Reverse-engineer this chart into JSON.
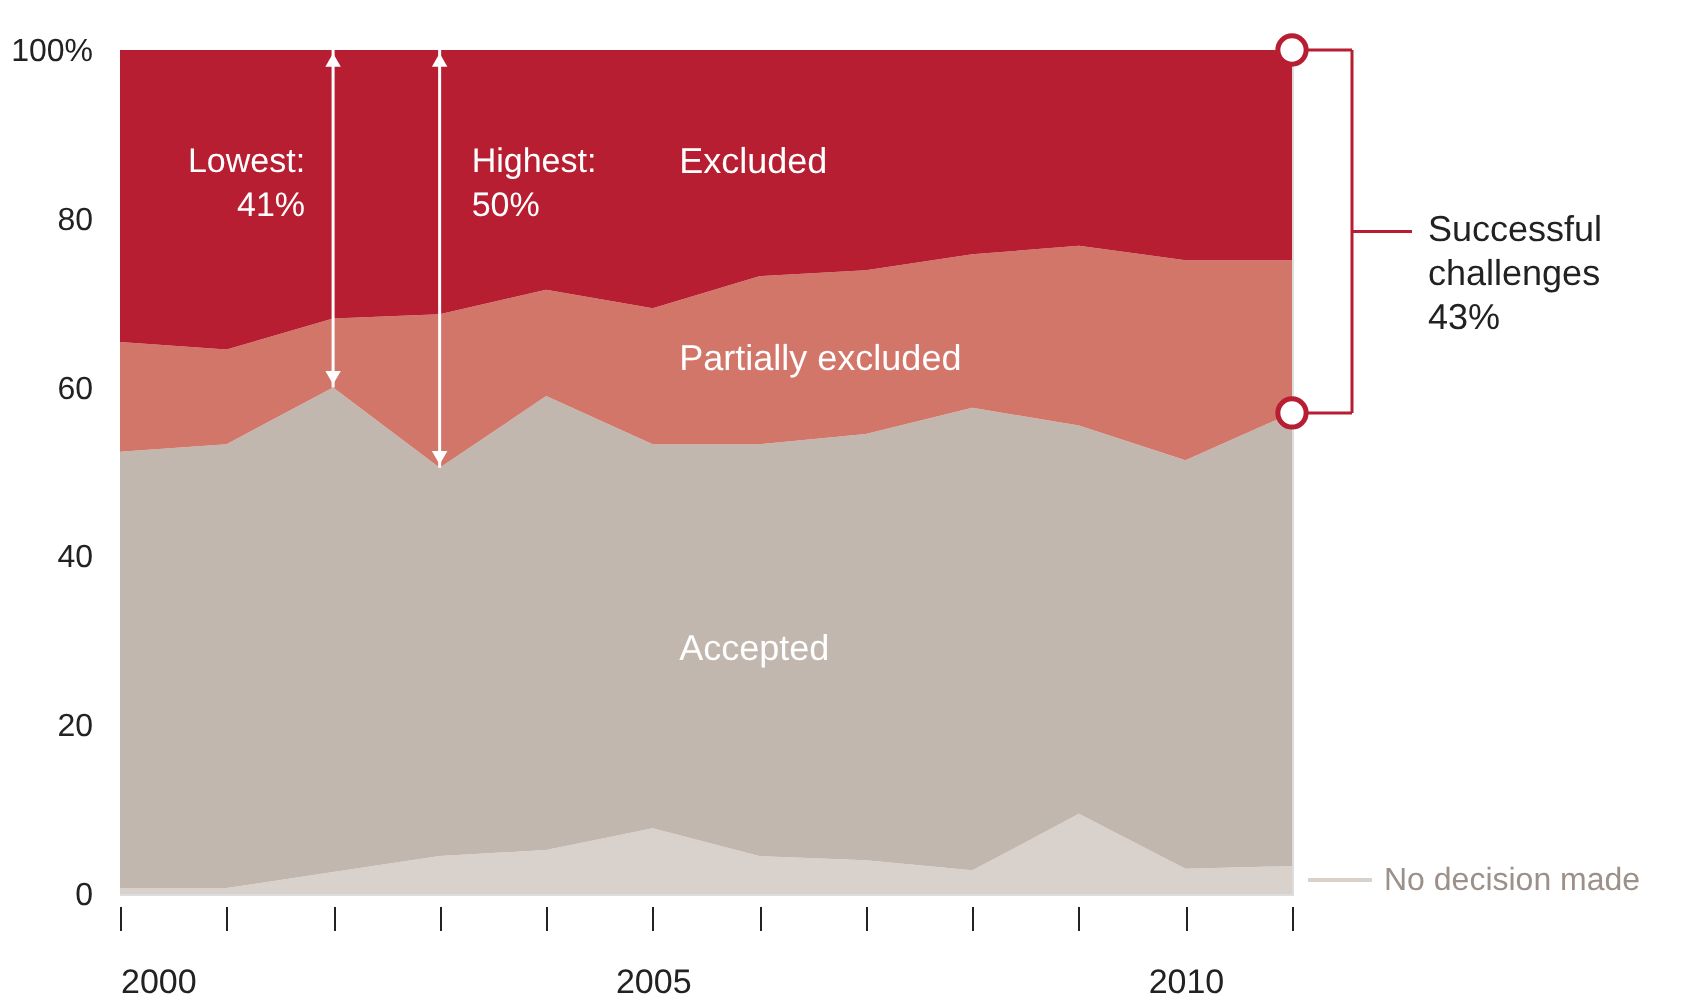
{
  "chart_data": {
    "type": "area",
    "stacked": true,
    "x": [
      2000,
      2001,
      2002,
      2003,
      2004,
      2005,
      2006,
      2007,
      2008,
      2009,
      2010,
      2011
    ],
    "series": [
      {
        "name": "No decision made",
        "color": "#d9d1cc",
        "values": [
          0.7,
          0.7,
          2.6,
          4.5,
          5.2,
          7.8,
          4.5,
          4,
          2.8,
          9.5,
          3,
          3.3
        ]
      },
      {
        "name": "Accepted",
        "color": "#c1b7ae",
        "values": [
          51.7,
          52.6,
          57.4,
          46,
          53.8,
          45.5,
          48.8,
          50.5,
          54.8,
          46,
          48.4,
          53.7
        ]
      },
      {
        "name": "Partially excluded",
        "color": "#d2766a",
        "values": [
          13,
          11.2,
          8.2,
          18.2,
          12.6,
          16.1,
          19.9,
          19.4,
          18.2,
          21.3,
          23.7,
          18.1
        ]
      },
      {
        "name": "Excluded",
        "color": "#b81e32",
        "values": [
          34.6,
          35.5,
          31.8,
          31.3,
          28.4,
          30.6,
          26.8,
          26.1,
          24.2,
          23.2,
          24.9,
          24.9
        ]
      }
    ],
    "xlim": [
      2000,
      2011
    ],
    "xticks": [
      2000,
      {
        "value": 2001,
        "label": null
      },
      {
        "value": 2002,
        "label": null
      },
      {
        "value": 2003,
        "label": null
      },
      {
        "value": 2004,
        "label": null
      },
      2005,
      {
        "value": 2006,
        "label": null
      },
      {
        "value": 2007,
        "label": null
      },
      {
        "value": 2008,
        "label": null
      },
      {
        "value": 2009,
        "label": null
      },
      2010,
      {
        "value": 2011,
        "label": null
      }
    ],
    "ylim": [
      0,
      100
    ],
    "yticks": [
      0,
      20,
      40,
      60,
      80,
      {
        "value": 100,
        "label": "100%"
      }
    ],
    "grid": false,
    "legend": "bottom right",
    "annotations": [
      "Lowest:\n41%",
      "Highest:\n50%",
      "Successful\nchallenges\n43%"
    ]
  }
}
